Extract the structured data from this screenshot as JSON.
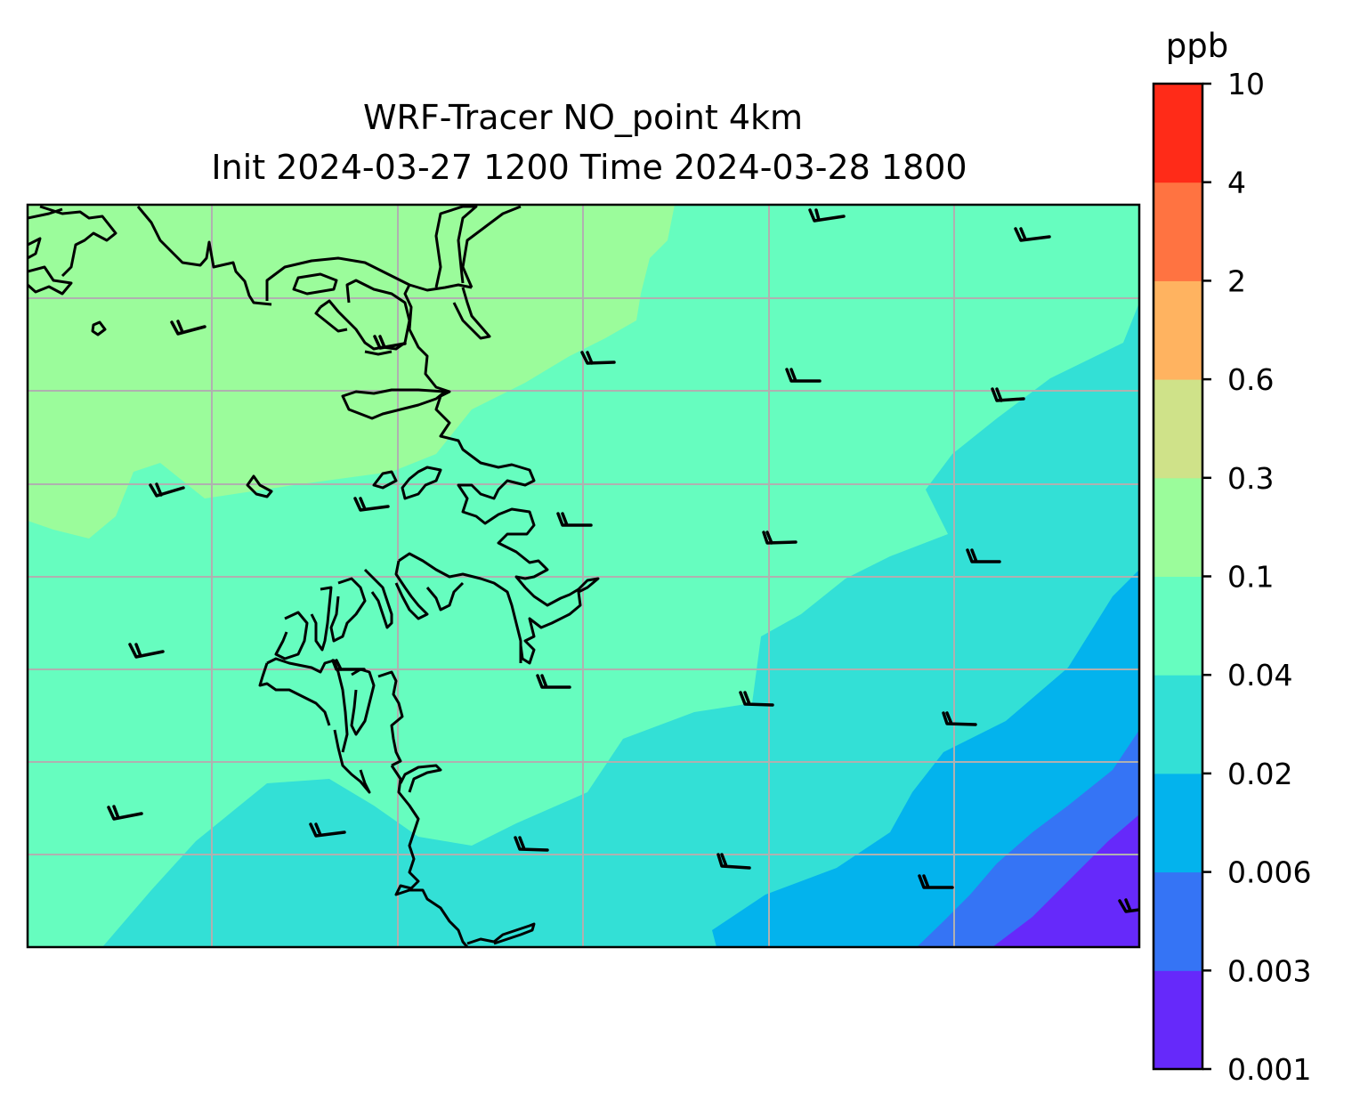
{
  "title": {
    "line1": "WRF-Tracer NO_point 4km",
    "line2": "Init 2024-03-27 1200 Time 2024-03-28 1800"
  },
  "colorbar": {
    "unit": "ppb",
    "levels": [
      "0.001",
      "0.003",
      "0.006",
      "0.02",
      "0.04",
      "0.1",
      "0.3",
      "0.6",
      "2",
      "4",
      "10"
    ],
    "colors": [
      "#6629fa",
      "#3574f5",
      "#03b3ed",
      "#33e0d6",
      "#66fdbf",
      "#9bfc9b",
      "#cfe289",
      "#ffb360",
      "#ff7341",
      "#ff2b18"
    ]
  },
  "map": {
    "background_fill": "#66fdbf",
    "gridlines": true,
    "gridline_color": "#b0b0b0",
    "coastline_color": "#000000",
    "wind_barbs": true,
    "wind_direction": "westerly",
    "concentration_gradient": "highest in northwest, lowest in southeast"
  }
}
